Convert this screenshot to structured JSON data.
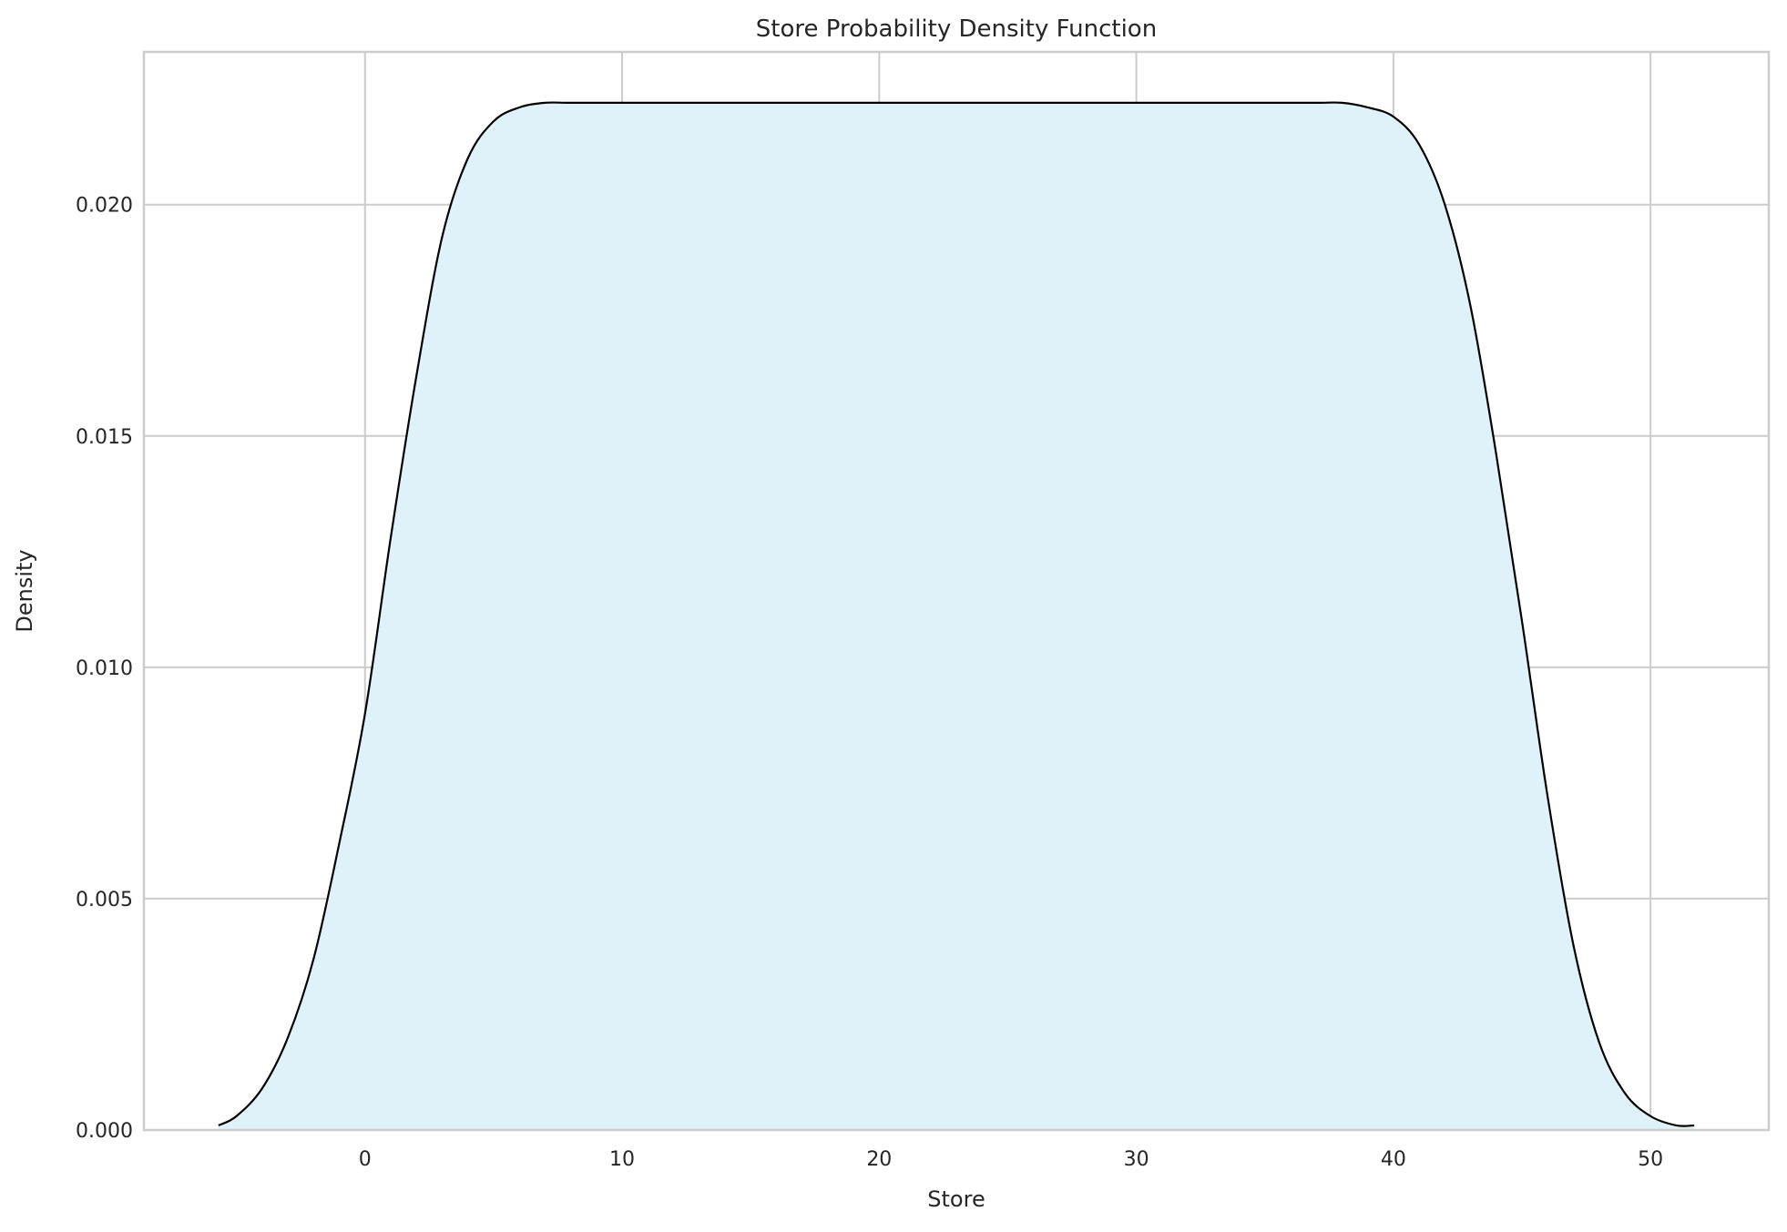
{
  "chart_data": {
    "type": "area",
    "title": "Store Probability Density Function",
    "xlabel": "Store",
    "ylabel": "Density",
    "xlim": [
      -8.6,
      54.6
    ],
    "ylim": [
      0,
      0.0233
    ],
    "x_ticks": [
      0,
      10,
      20,
      30,
      40,
      50
    ],
    "x_tick_labels": [
      "0",
      "10",
      "20",
      "30",
      "40",
      "50"
    ],
    "y_ticks": [
      0,
      0.005,
      0.01,
      0.015,
      0.02
    ],
    "y_tick_labels": [
      "0.000",
      "0.005",
      "0.010",
      "0.015",
      "0.020"
    ],
    "grid": true,
    "legend": "none",
    "series": [
      {
        "fill_color": "#dff1f9",
        "line_color": "#000000",
        "x": [
          -5.7,
          -5.0,
          -4.0,
          -3.0,
          -2.0,
          -1.0,
          0.0,
          1.0,
          2.0,
          3.0,
          4.0,
          5.0,
          6.0,
          7.0,
          8.0,
          10.0,
          15.0,
          20.0,
          25.0,
          30.0,
          35.0,
          37.0,
          38.0,
          39.0,
          40.0,
          41.0,
          42.0,
          43.0,
          44.0,
          45.0,
          46.0,
          47.0,
          48.0,
          49.0,
          50.0,
          51.0,
          51.7
        ],
        "y": [
          0.0001,
          0.0003,
          0.0009,
          0.002,
          0.0037,
          0.0062,
          0.009,
          0.0128,
          0.0163,
          0.0193,
          0.021,
          0.0218,
          0.0221,
          0.0222,
          0.0222,
          0.0222,
          0.0222,
          0.0222,
          0.0222,
          0.0222,
          0.0222,
          0.0222,
          0.0222,
          0.0221,
          0.0219,
          0.0213,
          0.02,
          0.0178,
          0.0146,
          0.011,
          0.0072,
          0.004,
          0.0019,
          0.0008,
          0.0003,
          0.0001,
          0.0001
        ]
      }
    ]
  }
}
